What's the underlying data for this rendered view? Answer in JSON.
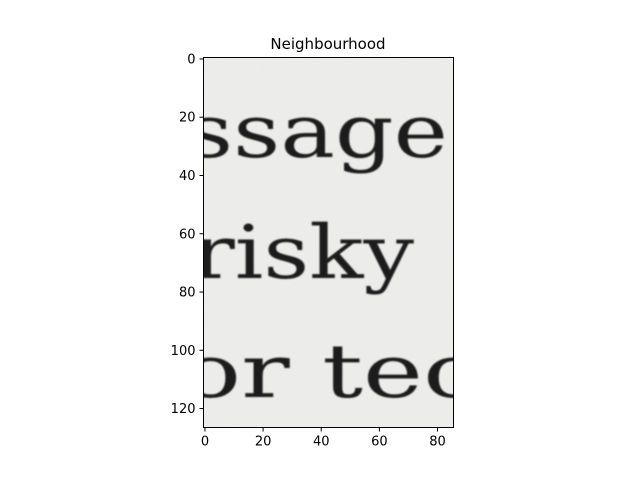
{
  "figure": {
    "title": "Neighbourhood"
  },
  "image": {
    "text_lines": [
      "ssage",
      "risky",
      "or  tec"
    ],
    "background_color": "#f0f0ef",
    "ink_color": "#1b1b1b"
  },
  "axes": {
    "x_ticks": [
      0,
      20,
      40,
      60,
      80
    ],
    "y_ticks": [
      0,
      20,
      40,
      60,
      80,
      100,
      120
    ],
    "x_range": [
      -0.5,
      85.5
    ],
    "y_range": [
      126.5,
      -0.5
    ]
  }
}
